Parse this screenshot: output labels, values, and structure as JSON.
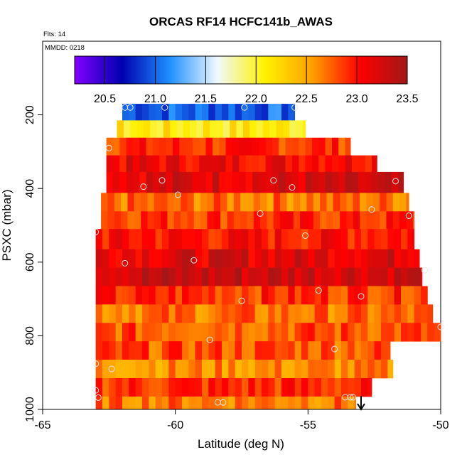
{
  "chart_data": {
    "type": "heatmap",
    "title": "ORCAS RF14 HCFC141b_AWAS",
    "flights_label": "Flts: 14",
    "date_label": "MMDD: 0218",
    "xlabel": "Latitude (deg N)",
    "ylabel": "PSXC (mbar)",
    "xlim": [
      -65,
      -50
    ],
    "ylim": [
      1000,
      0
    ],
    "x_ticks": [
      -65,
      -60,
      -55,
      -50
    ],
    "x_tick_labels": [
      "-65",
      "-60",
      "-55",
      "-50"
    ],
    "y_ticks": [
      200,
      400,
      600,
      800,
      1000
    ],
    "y_tick_labels": [
      "200",
      "400",
      "600",
      "800",
      "1000"
    ],
    "colorbar": {
      "min": 20.2,
      "max": 23.5,
      "ticks": [
        20.5,
        21.0,
        21.5,
        22.0,
        22.5,
        23.0,
        23.5
      ],
      "tick_labels": [
        "20.5",
        "21.0",
        "21.5",
        "22.0",
        "22.5",
        "23.0",
        "23.5"
      ],
      "colors": [
        "#8000ff",
        "#0000b0",
        "#1e90ff",
        "#f0f8ff",
        "#fff200",
        "#ffa000",
        "#ff0000",
        "#a01818"
      ]
    },
    "bands": [
      {
        "p_top": 170,
        "p_bot": 215,
        "x_min": -62.0,
        "x_max": -55.5,
        "value": 21.0
      },
      {
        "p_top": 215,
        "p_bot": 262,
        "x_min": -62.2,
        "x_max": -55.1,
        "value": 22.1
      },
      {
        "p_top": 262,
        "p_bot": 310,
        "x_min": -62.6,
        "x_max": -53.4,
        "value": 22.9
      },
      {
        "p_top": 310,
        "p_bot": 355,
        "x_min": -62.6,
        "x_max": -52.4,
        "value": 23.1
      },
      {
        "p_top": 355,
        "p_bot": 412,
        "x_min": -62.6,
        "x_max": -51.4,
        "value": 23.2
      },
      {
        "p_top": 412,
        "p_bot": 462,
        "x_min": -62.8,
        "x_max": -51.2,
        "value": 22.7
      },
      {
        "p_top": 462,
        "p_bot": 510,
        "x_min": -62.8,
        "x_max": -51.0,
        "value": 22.9
      },
      {
        "p_top": 510,
        "p_bot": 565,
        "x_min": -63.0,
        "x_max": -51.0,
        "value": 23.0
      },
      {
        "p_top": 565,
        "p_bot": 615,
        "x_min": -63.0,
        "x_max": -50.8,
        "value": 23.2
      },
      {
        "p_top": 615,
        "p_bot": 665,
        "x_min": -63.0,
        "x_max": -50.7,
        "value": 23.3
      },
      {
        "p_top": 665,
        "p_bot": 715,
        "x_min": -63.0,
        "x_max": -50.5,
        "value": 22.9
      },
      {
        "p_top": 715,
        "p_bot": 765,
        "x_min": -63.0,
        "x_max": -50.3,
        "value": 22.7
      },
      {
        "p_top": 765,
        "p_bot": 815,
        "x_min": -63.0,
        "x_max": -50.0,
        "value": 22.8
      },
      {
        "p_top": 815,
        "p_bot": 865,
        "x_min": -63.0,
        "x_max": -51.9,
        "value": 22.8
      },
      {
        "p_top": 865,
        "p_bot": 915,
        "x_min": -63.0,
        "x_max": -51.8,
        "value": 22.6
      },
      {
        "p_top": 915,
        "p_bot": 965,
        "x_min": -63.0,
        "x_max": -52.6,
        "value": 22.9
      },
      {
        "p_top": 965,
        "p_bot": 1000,
        "x_min": -63.0,
        "x_max": -53.2,
        "value": 22.7
      }
    ],
    "sample_points": [
      {
        "lat": -61.9,
        "p": 180
      },
      {
        "lat": -61.7,
        "p": 180
      },
      {
        "lat": -60.4,
        "p": 180
      },
      {
        "lat": -57.4,
        "p": 180
      },
      {
        "lat": -55.5,
        "p": 180
      },
      {
        "lat": -62.5,
        "p": 290
      },
      {
        "lat": -61.2,
        "p": 395
      },
      {
        "lat": -60.5,
        "p": 378
      },
      {
        "lat": -59.9,
        "p": 417
      },
      {
        "lat": -56.3,
        "p": 378
      },
      {
        "lat": -55.6,
        "p": 397
      },
      {
        "lat": -52.6,
        "p": 457
      },
      {
        "lat": -51.7,
        "p": 380
      },
      {
        "lat": -51.2,
        "p": 474
      },
      {
        "lat": -56.8,
        "p": 468
      },
      {
        "lat": -55.1,
        "p": 528
      },
      {
        "lat": -63.0,
        "p": 518
      },
      {
        "lat": -61.9,
        "p": 603
      },
      {
        "lat": -59.3,
        "p": 595
      },
      {
        "lat": -50.6,
        "p": 622
      },
      {
        "lat": -57.5,
        "p": 705
      },
      {
        "lat": -54.6,
        "p": 677
      },
      {
        "lat": -53.0,
        "p": 693
      },
      {
        "lat": -50.0,
        "p": 776
      },
      {
        "lat": -58.7,
        "p": 811
      },
      {
        "lat": -54.0,
        "p": 836
      },
      {
        "lat": -63.0,
        "p": 876
      },
      {
        "lat": -62.4,
        "p": 890
      },
      {
        "lat": -63.0,
        "p": 948
      },
      {
        "lat": -62.9,
        "p": 968
      },
      {
        "lat": -58.4,
        "p": 981
      },
      {
        "lat": -58.2,
        "p": 981
      },
      {
        "lat": -53.6,
        "p": 967
      },
      {
        "lat": -53.4,
        "p": 967
      },
      {
        "lat": -53.3,
        "p": 967
      }
    ],
    "arrow_lat": -53.0
  }
}
